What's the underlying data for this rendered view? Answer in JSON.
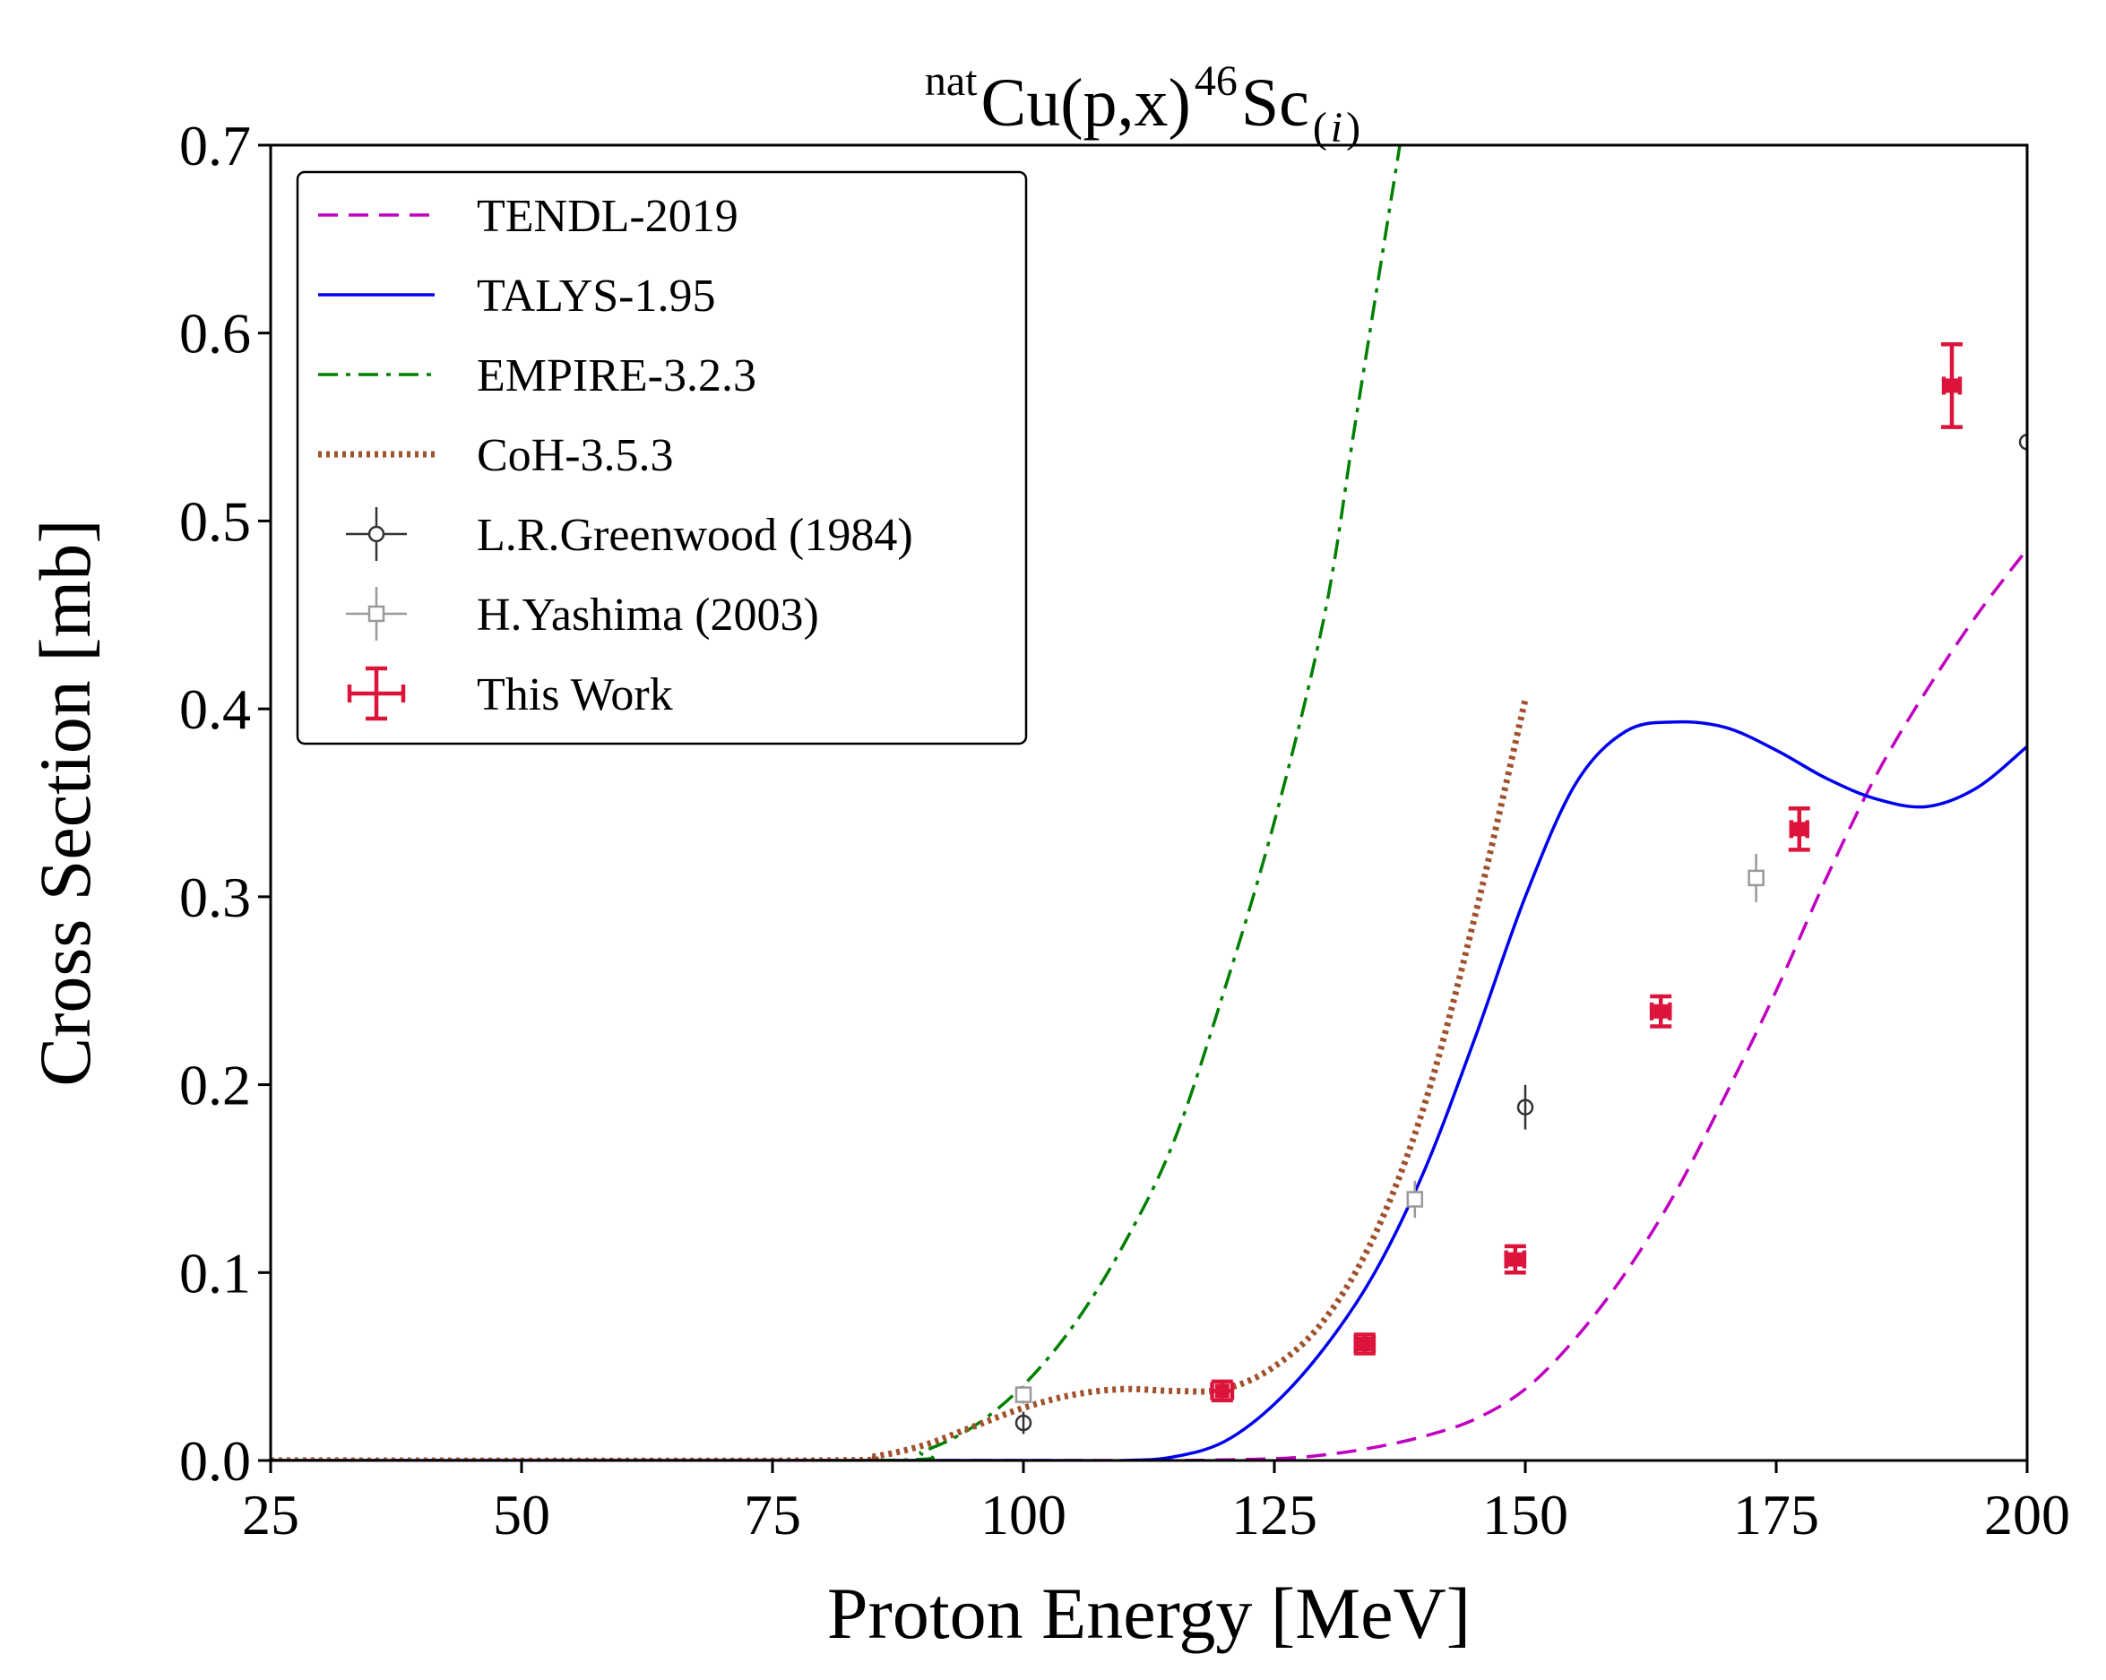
{
  "chart_data": {
    "type": "line",
    "title": {
      "prefix_sup": "nat",
      "main": "Cu(p,x)",
      "mass_sup": "46",
      "element": "Sc",
      "sub_open": "(",
      "sub_italic": "i",
      "sub_close": ")"
    },
    "xlabel": "Proton Energy [MeV]",
    "ylabel": "Cross Section [mb]",
    "xlim": [
      25,
      200
    ],
    "ylim": [
      0,
      0.7
    ],
    "xticks": [
      "25",
      "50",
      "75",
      "100",
      "125",
      "150",
      "175",
      "200"
    ],
    "yticks": [
      "0.0",
      "0.1",
      "0.2",
      "0.3",
      "0.4",
      "0.5",
      "0.6",
      "0.7"
    ],
    "legend_position": "top-left",
    "series": [
      {
        "name": "TENDL-2019",
        "kind": "curve",
        "style": "dashed",
        "color": "#c000c0",
        "x": [
          25,
          100,
          115,
          125,
          130,
          135,
          140,
          145,
          150,
          155,
          160,
          165,
          170,
          175,
          180,
          185,
          190,
          195,
          200
        ],
        "y": [
          0,
          0,
          0,
          0.001,
          0.003,
          0.007,
          0.013,
          0.022,
          0.038,
          0.065,
          0.1,
          0.143,
          0.195,
          0.25,
          0.31,
          0.365,
          0.41,
          0.45,
          0.485
        ]
      },
      {
        "name": "TALYS-1.95",
        "kind": "curve",
        "style": "solid",
        "color": "#0000ee",
        "x": [
          25,
          100,
          110,
          115,
          120,
          125,
          130,
          135,
          140,
          145,
          150,
          155,
          160,
          165,
          170,
          175,
          180,
          185,
          190,
          195,
          200
        ],
        "y": [
          0,
          0,
          0,
          0.002,
          0.01,
          0.03,
          0.06,
          0.1,
          0.155,
          0.225,
          0.3,
          0.36,
          0.388,
          0.393,
          0.39,
          0.378,
          0.363,
          0.352,
          0.348,
          0.358,
          0.38
        ]
      },
      {
        "name": "EMPIRE-3.2.3",
        "kind": "curve",
        "style": "dashdot",
        "color": "#008000",
        "x": [
          25,
          85,
          90,
          95,
          100,
          105,
          110,
          115,
          120,
          125,
          130,
          133,
          136,
          137.5
        ],
        "y": [
          0,
          0,
          0.005,
          0.018,
          0.04,
          0.072,
          0.115,
          0.17,
          0.25,
          0.34,
          0.45,
          0.55,
          0.65,
          0.7
        ]
      },
      {
        "name": "CoH-3.5.3",
        "kind": "curve",
        "style": "dotted",
        "color": "#a0522d",
        "x": [
          25,
          80,
          85,
          90,
          95,
          100,
          105,
          110,
          115,
          120,
          125,
          130,
          135,
          140,
          145,
          150
        ],
        "y": [
          0,
          0,
          0.002,
          0.008,
          0.018,
          0.028,
          0.035,
          0.038,
          0.037,
          0.038,
          0.05,
          0.075,
          0.12,
          0.19,
          0.29,
          0.405
        ]
      },
      {
        "name": "L.R.Greenwood (1984)",
        "kind": "points",
        "marker": "circle",
        "color": "#333333",
        "x": [
          100,
          150,
          200
        ],
        "y": [
          0.02,
          0.188,
          0.542
        ],
        "yerr": [
          0.003,
          0.009,
          0.012
        ]
      },
      {
        "name": "H.Yashima (2003)",
        "kind": "points",
        "marker": "square",
        "color": "#999999",
        "x": [
          100,
          139,
          173
        ],
        "y": [
          0.035,
          0.139,
          0.31
        ],
        "yerr": [
          0.002,
          0.007,
          0.01
        ]
      },
      {
        "name": "This Work",
        "kind": "points",
        "marker": "square-filled",
        "color": "#dc143c",
        "x": [
          119.8,
          134,
          149,
          163.5,
          177.3,
          192.5
        ],
        "y": [
          0.037,
          0.062,
          0.107,
          0.239,
          0.336,
          0.572
        ],
        "xerr": [
          1.0,
          0.9,
          0.9,
          0.9,
          0.8,
          0.8
        ],
        "yerr": [
          0.005,
          0.005,
          0.007,
          0.008,
          0.011,
          0.022
        ]
      }
    ]
  }
}
